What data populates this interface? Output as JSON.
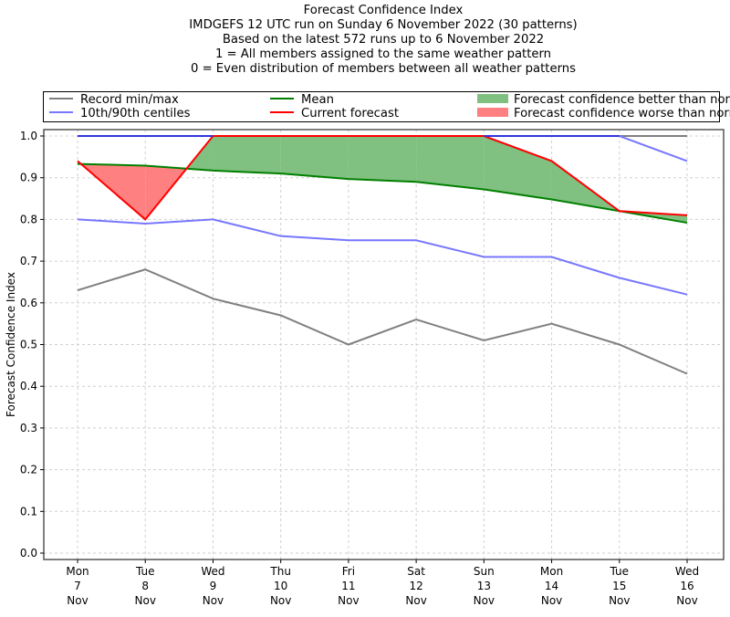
{
  "chart_data": {
    "type": "line",
    "title_lines": [
      "Forecast Confidence Index",
      "IMDGEFS 12 UTC run on Sunday 6 November 2022 (30 patterns)",
      "Based on the latest 572 runs up to 6 November 2022",
      "1 = All members assigned to the same weather pattern",
      "0 = Even distribution of members between all weather patterns"
    ],
    "ylabel": "Forecast Confidence Index",
    "xlabel": "",
    "ylim": [
      0.0,
      1.0
    ],
    "yticks": [
      "0.0",
      "0.1",
      "0.2",
      "0.3",
      "0.4",
      "0.5",
      "0.6",
      "0.7",
      "0.8",
      "0.9",
      "1.0"
    ],
    "grid": true,
    "legend_placement": "top",
    "categories": [
      {
        "day": "Mon",
        "date": "7",
        "month": "Nov"
      },
      {
        "day": "Tue",
        "date": "8",
        "month": "Nov"
      },
      {
        "day": "Wed",
        "date": "9",
        "month": "Nov"
      },
      {
        "day": "Thu",
        "date": "10",
        "month": "Nov"
      },
      {
        "day": "Fri",
        "date": "11",
        "month": "Nov"
      },
      {
        "day": "Sat",
        "date": "12",
        "month": "Nov"
      },
      {
        "day": "Sun",
        "date": "13",
        "month": "Nov"
      },
      {
        "day": "Mon",
        "date": "14",
        "month": "Nov"
      },
      {
        "day": "Tue",
        "date": "15",
        "month": "Nov"
      },
      {
        "day": "Wed",
        "date": "16",
        "month": "Nov"
      }
    ],
    "series": [
      {
        "name": "Record max",
        "legend": "Record min/max",
        "color": "#808080",
        "values": [
          1.0,
          1.0,
          1.0,
          1.0,
          1.0,
          1.0,
          1.0,
          1.0,
          1.0,
          1.0
        ]
      },
      {
        "name": "Record min",
        "legend": "Record min/max",
        "color": "#808080",
        "values": [
          0.63,
          0.68,
          0.61,
          0.57,
          0.5,
          0.56,
          0.51,
          0.55,
          0.5,
          0.43
        ]
      },
      {
        "name": "90th centile",
        "legend": "10th/90th centiles",
        "color": "#7777ff",
        "values": [
          1.0,
          1.0,
          1.0,
          1.0,
          1.0,
          1.0,
          1.0,
          1.0,
          1.0,
          0.94
        ]
      },
      {
        "name": "10th centile",
        "legend": "10th/90th centiles",
        "color": "#7777ff",
        "values": [
          0.8,
          0.79,
          0.8,
          0.76,
          0.75,
          0.75,
          0.71,
          0.71,
          0.66,
          0.62
        ]
      },
      {
        "name": "Mean",
        "legend": "Mean",
        "color": "#008000",
        "values": [
          0.933,
          0.929,
          0.917,
          0.91,
          0.897,
          0.89,
          0.872,
          0.848,
          0.82,
          0.792
        ]
      },
      {
        "name": "Current forecast",
        "legend": "Current forecast",
        "color": "#ff0000",
        "values": [
          0.94,
          0.8,
          1.0,
          1.0,
          1.0,
          1.0,
          1.0,
          0.94,
          0.82,
          0.81
        ]
      }
    ],
    "fills": {
      "better": {
        "label": "Forecast confidence better than normal",
        "color": "#80c080"
      },
      "worse": {
        "label": "Forecast confidence worse than normal",
        "color": "#ff8080"
      }
    }
  },
  "legend": {
    "record": "Record min/max",
    "centiles": "10th/90th centiles",
    "mean": "Mean",
    "current": "Current forecast",
    "better": "Forecast confidence better than normal",
    "worse": "Forecast confidence worse than normal"
  }
}
